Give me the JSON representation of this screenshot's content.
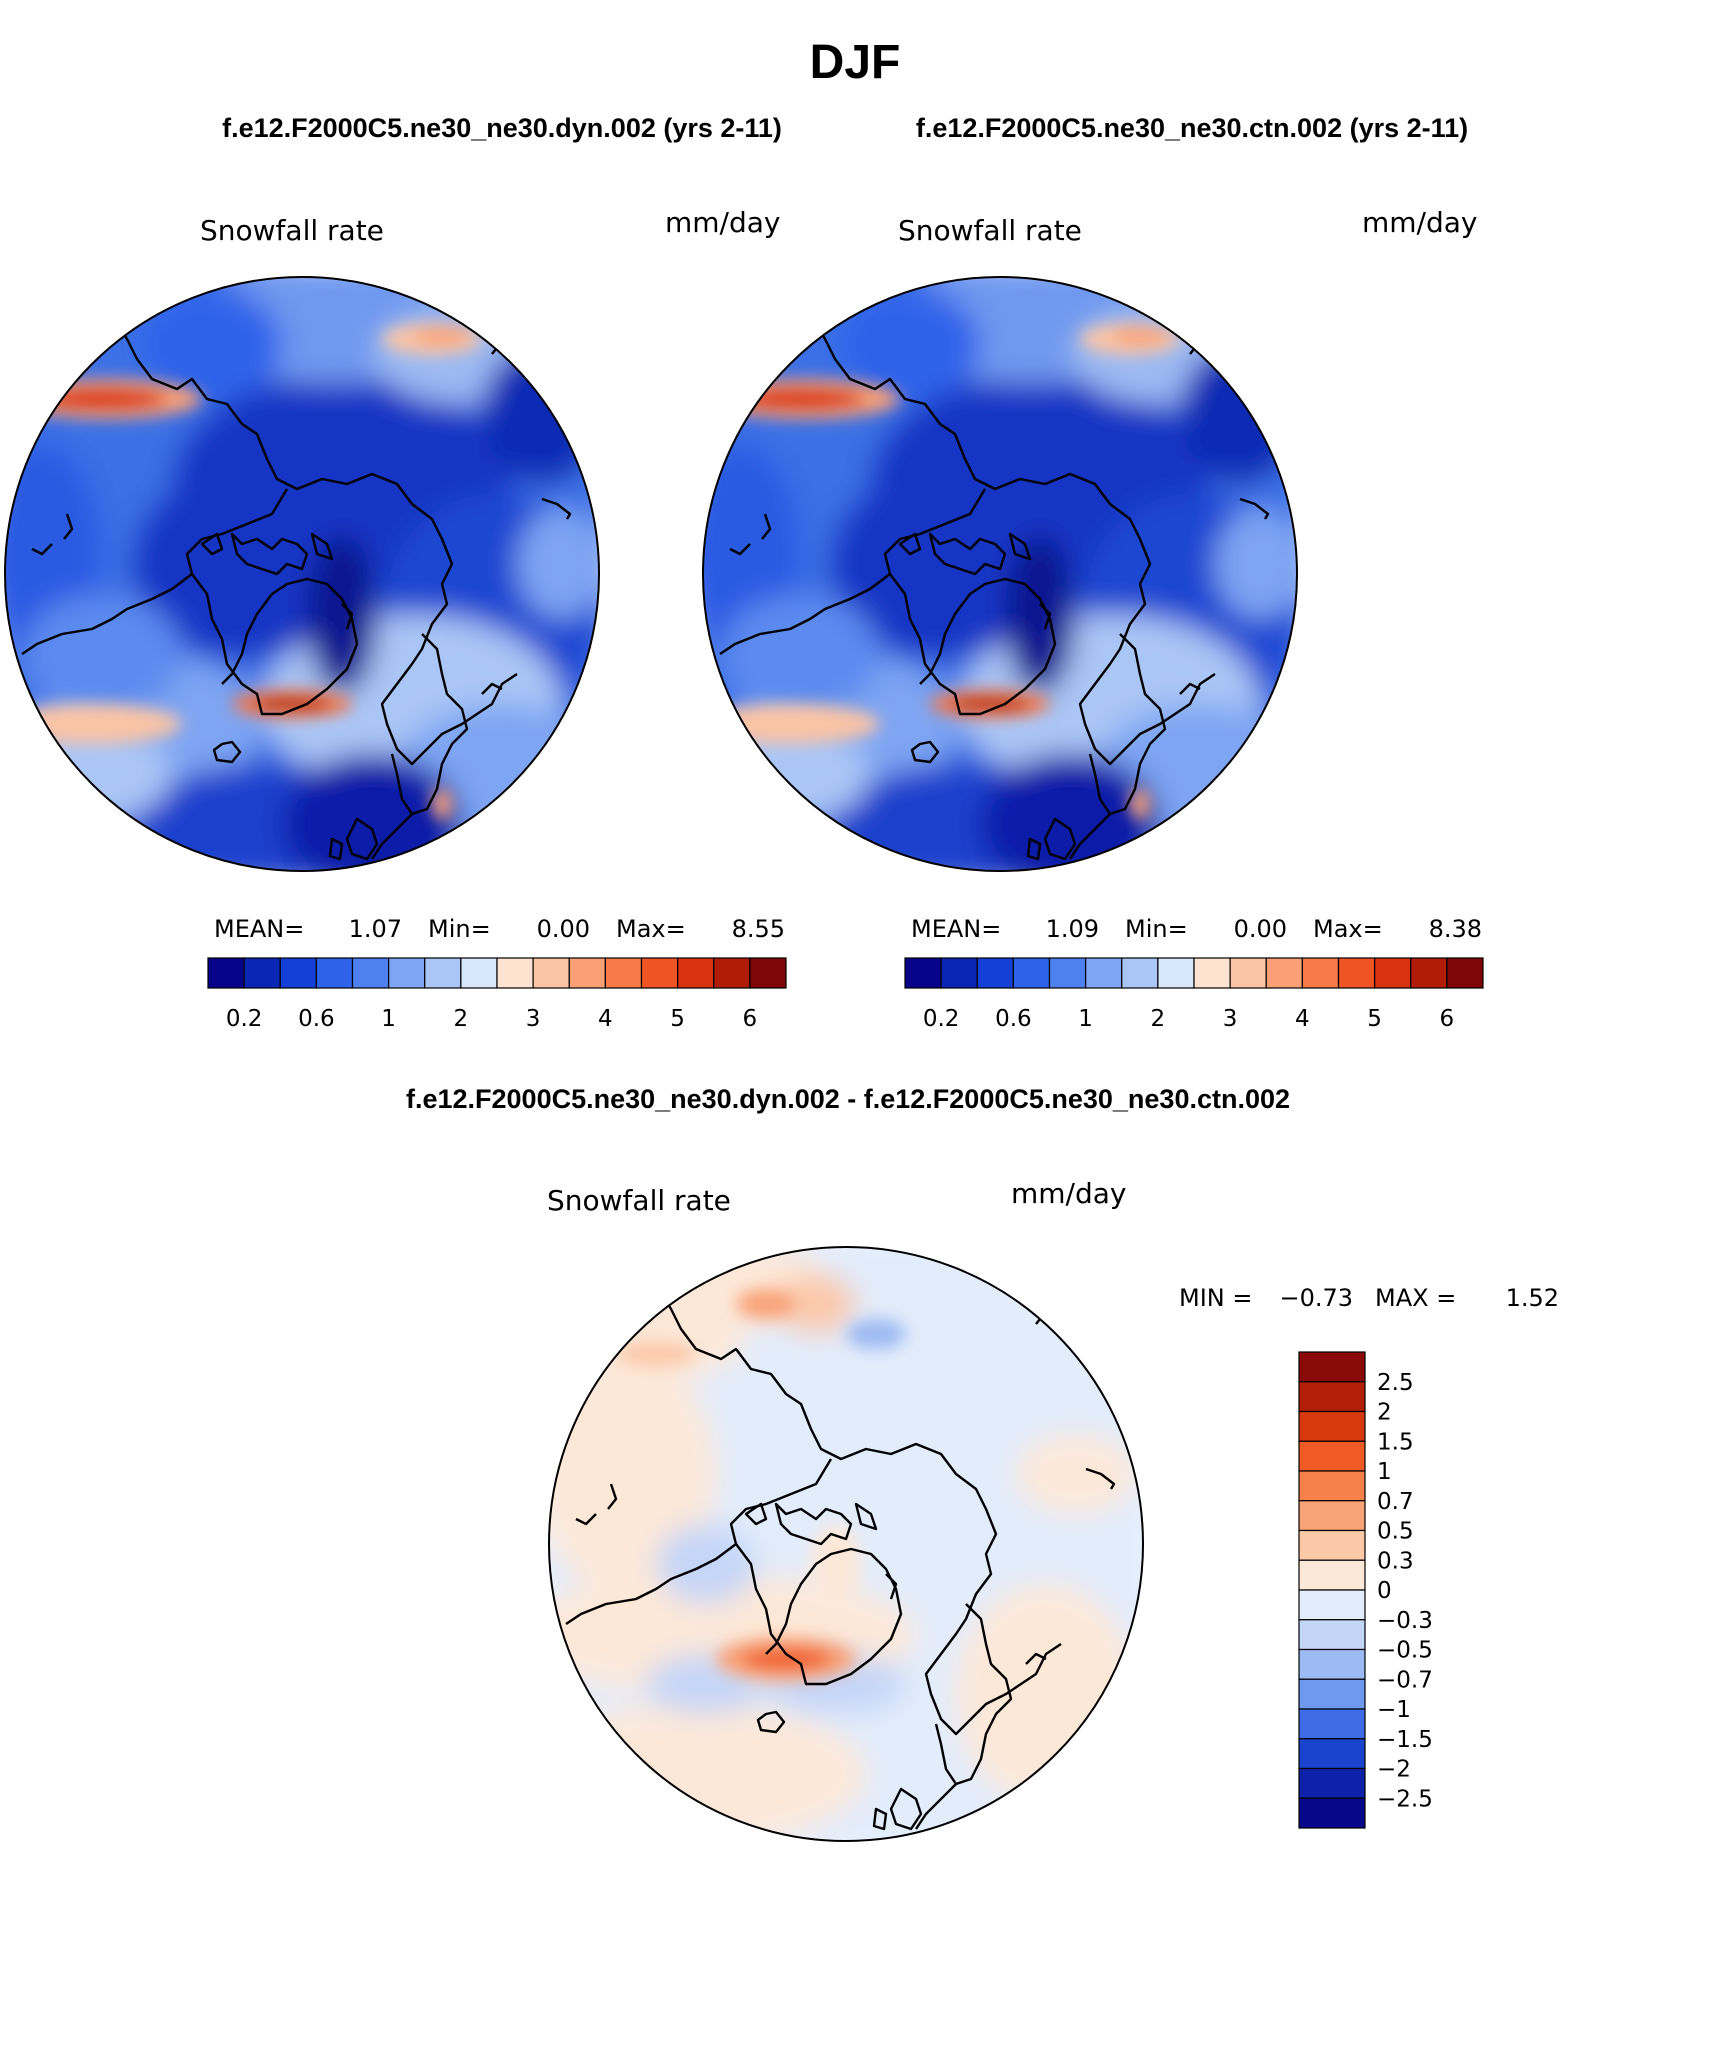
{
  "season": "DJF",
  "top_caption": {
    "left": "f.e12.F2000C5.ne30_ne30.dyn.002 (yrs 2-11)",
    "right": "f.e12.F2000C5.ne30_ne30.ctn.002 (yrs 2-11)"
  },
  "diff_caption": "f.e12.F2000C5.ne30_ne30.dyn.002 - f.e12.F2000C5.ne30_ne30.ctn.002",
  "panels": {
    "dyn": {
      "variable": "Snowfall rate",
      "units": "mm/day",
      "mean_label": "MEAN=",
      "mean": "1.07",
      "min_label": "Min=",
      "min": "0.00",
      "max_label": "Max=",
      "max": "8.55"
    },
    "ctn": {
      "variable": "Snowfall rate",
      "units": "mm/day",
      "mean_label": "MEAN=",
      "mean": "1.09",
      "min_label": "Min=",
      "min": "0.00",
      "max_label": "Max=",
      "max": "8.38"
    },
    "diff": {
      "variable": "Snowfall rate",
      "units": "mm/day",
      "min_label": "MIN =",
      "min": "−0.73",
      "max_label": "MAX =",
      "max": "1.52"
    }
  },
  "colorbar_main": {
    "tick_labels": [
      "0.2",
      "0.6",
      "1",
      "2",
      "3",
      "4",
      "5",
      "6"
    ],
    "colors": [
      "#08048a",
      "#0a26b4",
      "#1440d8",
      "#2f62ea",
      "#4f80ef",
      "#7ea5f3",
      "#aac6f6",
      "#d7e6fb",
      "#fde3d0",
      "#fbc4a4",
      "#f9a076",
      "#f87a48",
      "#f05424",
      "#d8320e",
      "#b01c08",
      "#7e0606"
    ]
  },
  "colorbar_diff": {
    "levels": [
      "2.5",
      "2",
      "1.5",
      "1",
      "0.7",
      "0.5",
      "0.3",
      "0",
      "−0.3",
      "−0.5",
      "−0.7",
      "−1",
      "−1.5",
      "−2",
      "−2.5"
    ],
    "colors": [
      "#8a0a0a",
      "#b21e08",
      "#d8380e",
      "#f05a24",
      "#f8804a",
      "#f9a378",
      "#fbc8a8",
      "#fde8d8",
      "#e2ecfb",
      "#c4d6f8",
      "#9cbaf3",
      "#6f98ef",
      "#3d6ce6",
      "#1a44d0",
      "#0d22a8",
      "#07078a"
    ]
  }
}
